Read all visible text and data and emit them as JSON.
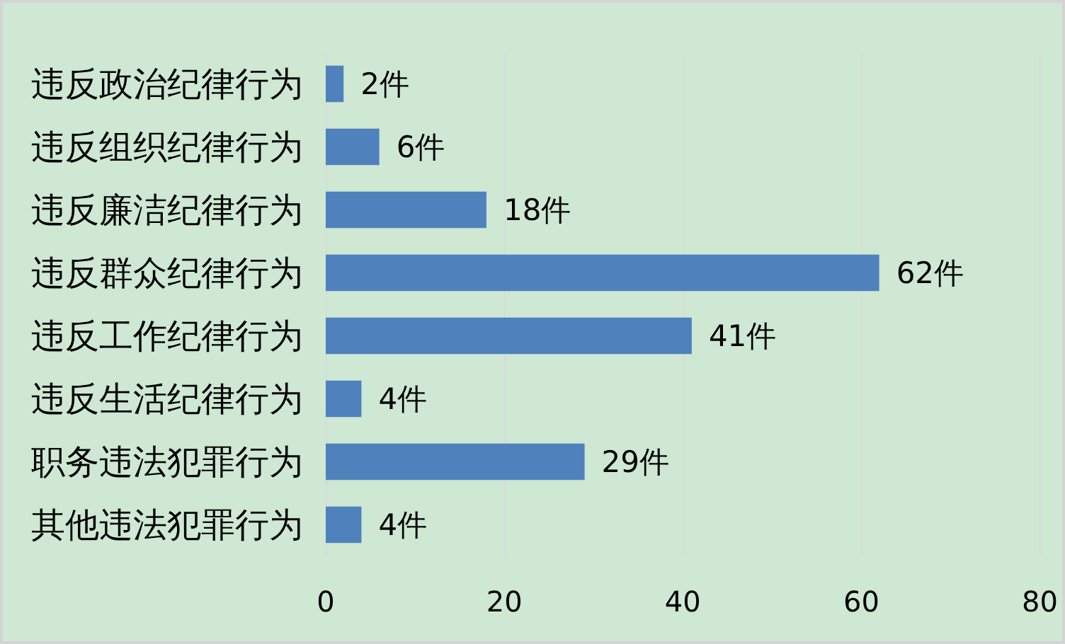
{
  "chart_data": {
    "type": "bar",
    "orientation": "horizontal",
    "categories": [
      "违反政治纪律行为",
      "违反组织纪律行为",
      "违反廉洁纪律行为",
      "违反群众纪律行为",
      "违反工作纪律行为",
      "违反生活纪律行为",
      "职务违法犯罪行为",
      "其他违法犯罪行为"
    ],
    "values": [
      2,
      6,
      18,
      62,
      41,
      4,
      29,
      4
    ],
    "value_labels": [
      "2件",
      "6件",
      "18件",
      "62件",
      "41件",
      "4件",
      "29件",
      "4件"
    ],
    "color": "#4f81bd",
    "xlim": [
      0,
      80
    ],
    "xticks": [
      0,
      20,
      40,
      60,
      80
    ],
    "grid": "x"
  }
}
